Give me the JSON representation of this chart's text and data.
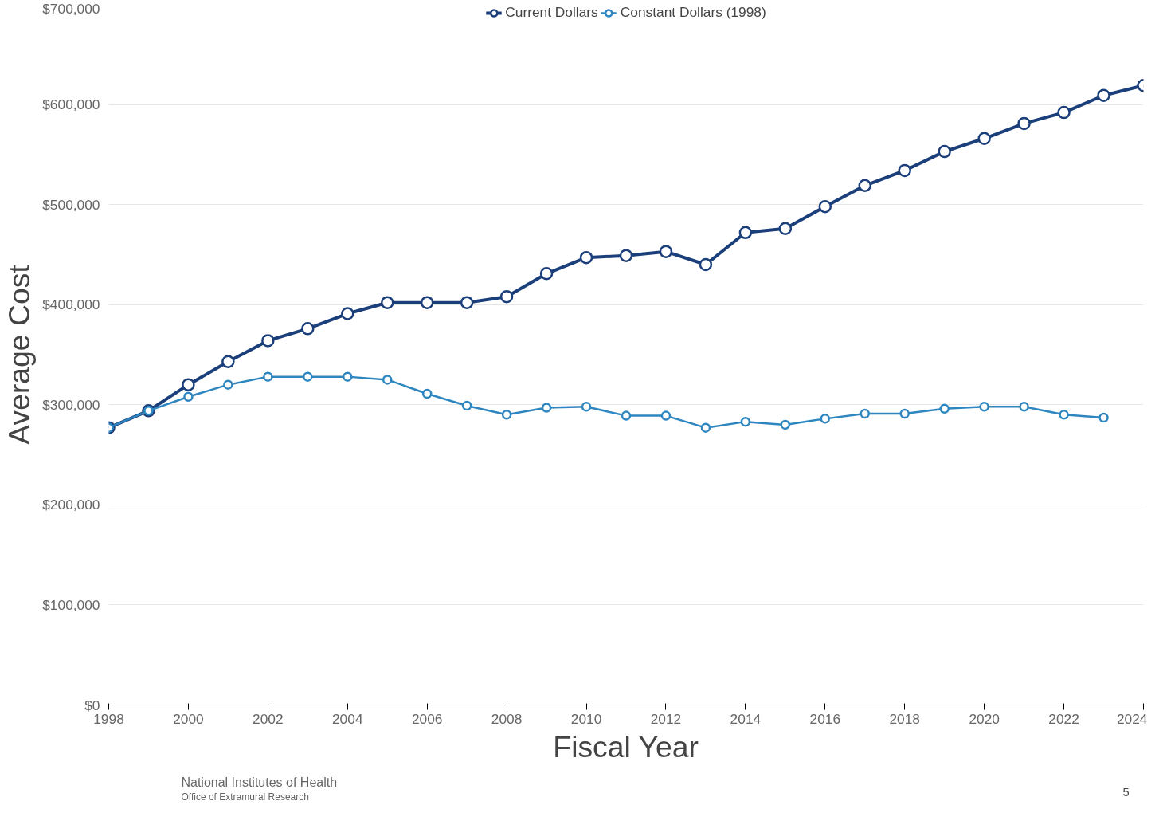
{
  "chart_data": {
    "type": "line",
    "xlabel": "Fiscal Year",
    "ylabel": "Average Cost",
    "x": [
      1998,
      1999,
      2000,
      2001,
      2002,
      2003,
      2004,
      2005,
      2006,
      2007,
      2008,
      2009,
      2010,
      2011,
      2012,
      2013,
      2014,
      2015,
      2016,
      2017,
      2018,
      2019,
      2020,
      2021,
      2022,
      2023,
      2024
    ],
    "series": [
      {
        "name": "Current Dollars",
        "color": "#1b3f7a",
        "values": [
          277000,
          294000,
          320000,
          343000,
          364000,
          376000,
          391000,
          402000,
          402000,
          402000,
          408000,
          431000,
          447000,
          449000,
          453000,
          440000,
          472000,
          476000,
          498000,
          519000,
          534000,
          553000,
          566000,
          581000,
          592000,
          609000,
          619000
        ]
      },
      {
        "name": "Constant Dollars (1998)",
        "color": "#2e86c1",
        "values": [
          277000,
          294000,
          308000,
          320000,
          328000,
          328000,
          328000,
          325000,
          311000,
          299000,
          290000,
          297000,
          298000,
          289000,
          289000,
          277000,
          283000,
          280000,
          286000,
          291000,
          291000,
          296000,
          298000,
          298000,
          290000,
          287000,
          null
        ]
      }
    ],
    "xlim": [
      1998,
      2024
    ],
    "xticks": [
      1998,
      2000,
      2002,
      2004,
      2006,
      2008,
      2010,
      2012,
      2014,
      2016,
      2018,
      2020,
      2022,
      2024
    ],
    "ylim": [
      0,
      700000
    ],
    "yticks": [
      {
        "value": 0,
        "label": "$0"
      },
      {
        "value": 100000,
        "label": "$100,000"
      },
      {
        "value": 200000,
        "label": "$200,000"
      },
      {
        "value": 300000,
        "label": "$300,000"
      },
      {
        "value": 400000,
        "label": "$400,000"
      },
      {
        "value": 500000,
        "label": "$500,000"
      },
      {
        "value": 600000,
        "label": "$600,000"
      },
      {
        "value": 700000,
        "label": "$700,000"
      }
    ],
    "grid": "y",
    "legend": "top",
    "marker": "circle",
    "line_style": "solid",
    "annotations": [
      "National Institutes of Health",
      "Office of Extramural Research",
      "5"
    ]
  }
}
